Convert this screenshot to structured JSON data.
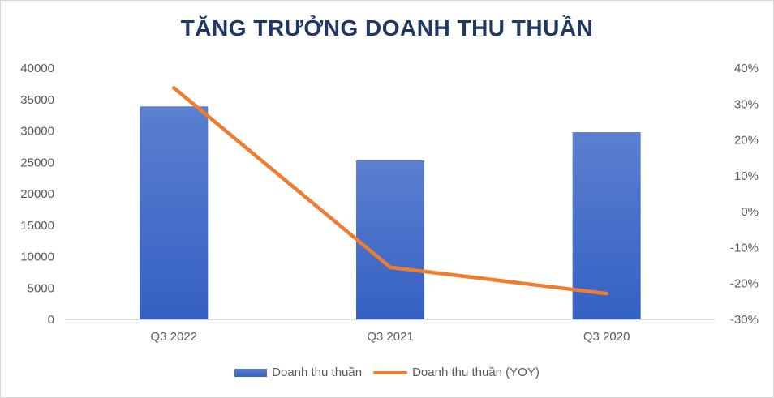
{
  "chart_data": {
    "type": "bar",
    "title": "TĂNG TRƯỞNG DOANH THU THUẦN",
    "categories": [
      "Q3 2022",
      "Q3 2021",
      "Q3 2020"
    ],
    "series": [
      {
        "name": "Doanh thu thuần",
        "kind": "bar",
        "axis": "left",
        "values": [
          33900,
          25300,
          29800
        ],
        "color": "#4472c4"
      },
      {
        "name": "Doanh thu thuần (YOY)",
        "kind": "line",
        "axis": "right",
        "values": [
          0.345,
          -0.155,
          -0.228
        ],
        "color": "#ed7d31"
      }
    ],
    "y_left": {
      "min": 0,
      "max": 40000,
      "ticks": [
        "0",
        "5000",
        "10000",
        "15000",
        "20000",
        "25000",
        "30000",
        "35000",
        "40000"
      ]
    },
    "y_right": {
      "min": -0.3,
      "max": 0.4,
      "ticks": [
        "-30%",
        "-20%",
        "-10%",
        "0%",
        "10%",
        "20%",
        "30%",
        "40%"
      ]
    },
    "grid": false,
    "legend_position": "bottom"
  }
}
